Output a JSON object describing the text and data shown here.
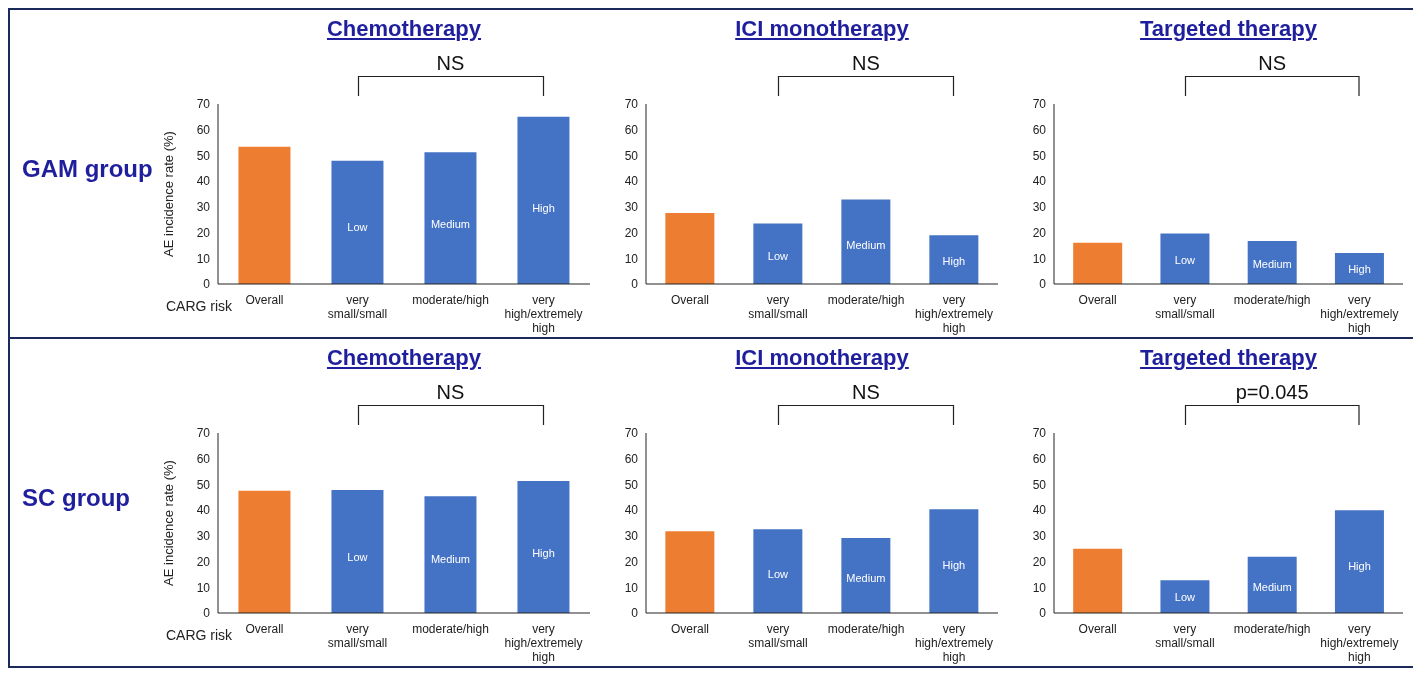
{
  "chart_data": [
    {
      "type": "bar",
      "title": "Chemotherapy",
      "ylabel": "AE incidence rate (%)",
      "categories": [
        "Overall",
        "very small/small",
        "moderate/high",
        "very high/extremely high"
      ],
      "values": [
        53.4,
        47.9,
        51.2,
        65
      ],
      "colors": [
        "#ed7d31",
        "#4472c4",
        "#4472c4",
        "#4472c4"
      ],
      "ylim": [
        0,
        70
      ],
      "yticks": [
        0,
        10,
        20,
        30,
        40,
        50,
        60,
        70
      ],
      "grid": false,
      "annotations": [
        "NS",
        "Low",
        "Medium",
        "High",
        "GAM group",
        "CARG risk"
      ]
    },
    {
      "type": "bar",
      "title": "ICI monotherapy",
      "categories": [
        "Overall",
        "very small/small",
        "moderate/high",
        "very high/extremely high"
      ],
      "values": [
        27.6,
        23.5,
        32.9,
        19
      ],
      "colors": [
        "#ed7d31",
        "#4472c4",
        "#4472c4",
        "#4472c4"
      ],
      "ylim": [
        0,
        70
      ],
      "yticks": [
        0,
        10,
        20,
        30,
        40,
        50,
        60,
        70
      ],
      "grid": false,
      "annotations": [
        "NS",
        "Low",
        "Medium",
        "High"
      ]
    },
    {
      "type": "bar",
      "title": "Targeted therapy",
      "categories": [
        "Overall",
        "very small/small",
        "moderate/high",
        "very high/extremely high"
      ],
      "values": [
        16,
        19.6,
        16.7,
        12.1
      ],
      "colors": [
        "#ed7d31",
        "#4472c4",
        "#4472c4",
        "#4472c4"
      ],
      "ylim": [
        0,
        70
      ],
      "yticks": [
        0,
        10,
        20,
        30,
        40,
        50,
        60,
        70
      ],
      "grid": false,
      "annotations": [
        "NS",
        "Low",
        "Medium",
        "High"
      ]
    },
    {
      "type": "bar",
      "title": "Chemotherapy",
      "ylabel": "AE incidence rate (%)",
      "categories": [
        "Overall",
        "very small/small",
        "moderate/high",
        "very high/extremely high"
      ],
      "values": [
        47.5,
        47.8,
        45.4,
        51.3
      ],
      "colors": [
        "#ed7d31",
        "#4472c4",
        "#4472c4",
        "#4472c4"
      ],
      "ylim": [
        0,
        70
      ],
      "yticks": [
        0,
        10,
        20,
        30,
        40,
        50,
        60,
        70
      ],
      "grid": false,
      "annotations": [
        "NS",
        "Low",
        "Medium",
        "High",
        "SC group",
        "CARG risk"
      ]
    },
    {
      "type": "bar",
      "title": "ICI monotherapy",
      "categories": [
        "Overall",
        "very small/small",
        "moderate/high",
        "very high/extremely high"
      ],
      "values": [
        31.8,
        32.6,
        29.2,
        40.3
      ],
      "colors": [
        "#ed7d31",
        "#4472c4",
        "#4472c4",
        "#4472c4"
      ],
      "ylim": [
        0,
        70
      ],
      "yticks": [
        0,
        10,
        20,
        30,
        40,
        50,
        60,
        70
      ],
      "grid": false,
      "annotations": [
        "NS",
        "Low",
        "Medium",
        "High"
      ]
    },
    {
      "type": "bar",
      "title": "Targeted therapy",
      "categories": [
        "Overall",
        "very small/small",
        "moderate/high",
        "very high/extremely high"
      ],
      "values": [
        25,
        12.7,
        21.9,
        40
      ],
      "colors": [
        "#ed7d31",
        "#4472c4",
        "#4472c4",
        "#4472c4"
      ],
      "ylim": [
        0,
        70
      ],
      "yticks": [
        0,
        10,
        20,
        30,
        40,
        50,
        60,
        70
      ],
      "grid": false,
      "annotations": [
        "p=0.045",
        "Low",
        "Medium",
        "High"
      ]
    }
  ]
}
